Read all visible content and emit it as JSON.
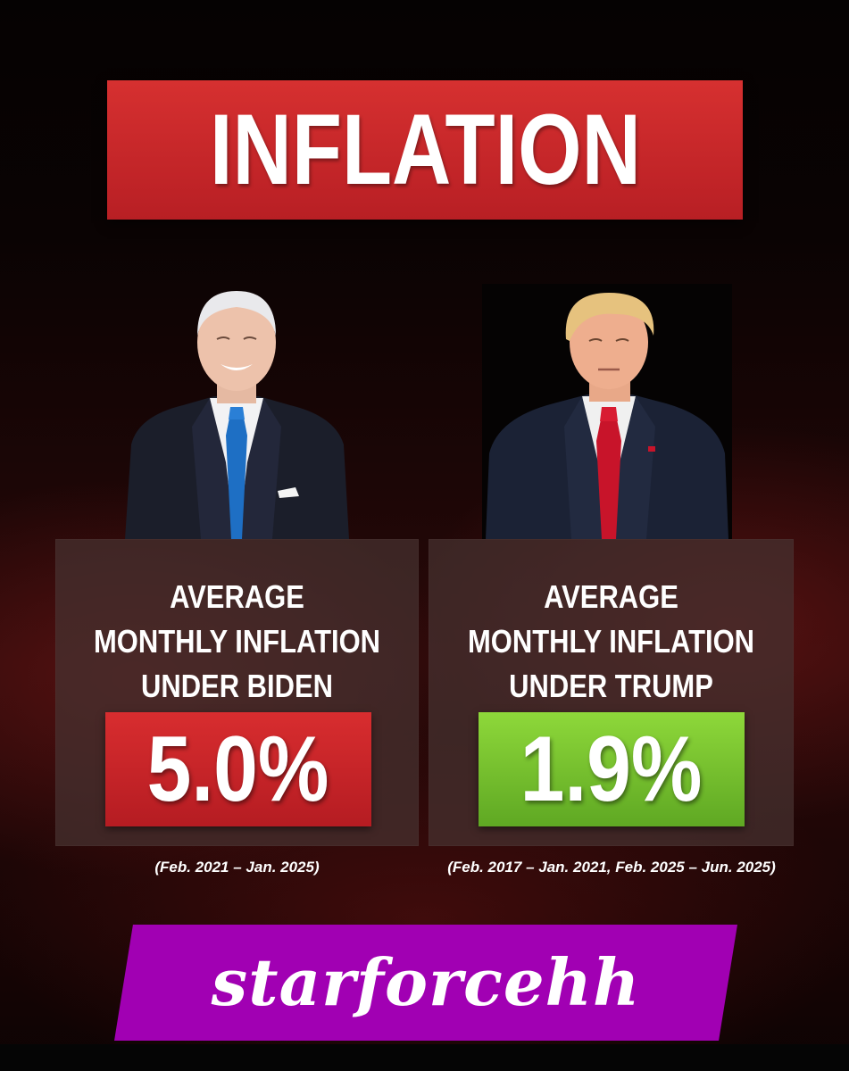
{
  "header": {
    "title": "INFLATION"
  },
  "left": {
    "label_lines": [
      "AVERAGE",
      "MONTHLY INFLATION",
      "UNDER BIDEN"
    ],
    "value": "5.0%",
    "period": "(Feb. 2021 – Jan. 2025)",
    "value_color": "#c62428",
    "tie_color": "#1e6fc4"
  },
  "right": {
    "label_lines": [
      "AVERAGE",
      "MONTHLY INFLATION",
      "UNDER TRUMP"
    ],
    "value": "1.9%",
    "period": "(Feb. 2017 – Jan. 2021, Feb. 2025 –  Jun. 2025)",
    "value_color": "#72bd2c",
    "tie_color": "#c8142a"
  },
  "watermark": {
    "text": "starforcehh",
    "color": "#a100b3"
  }
}
